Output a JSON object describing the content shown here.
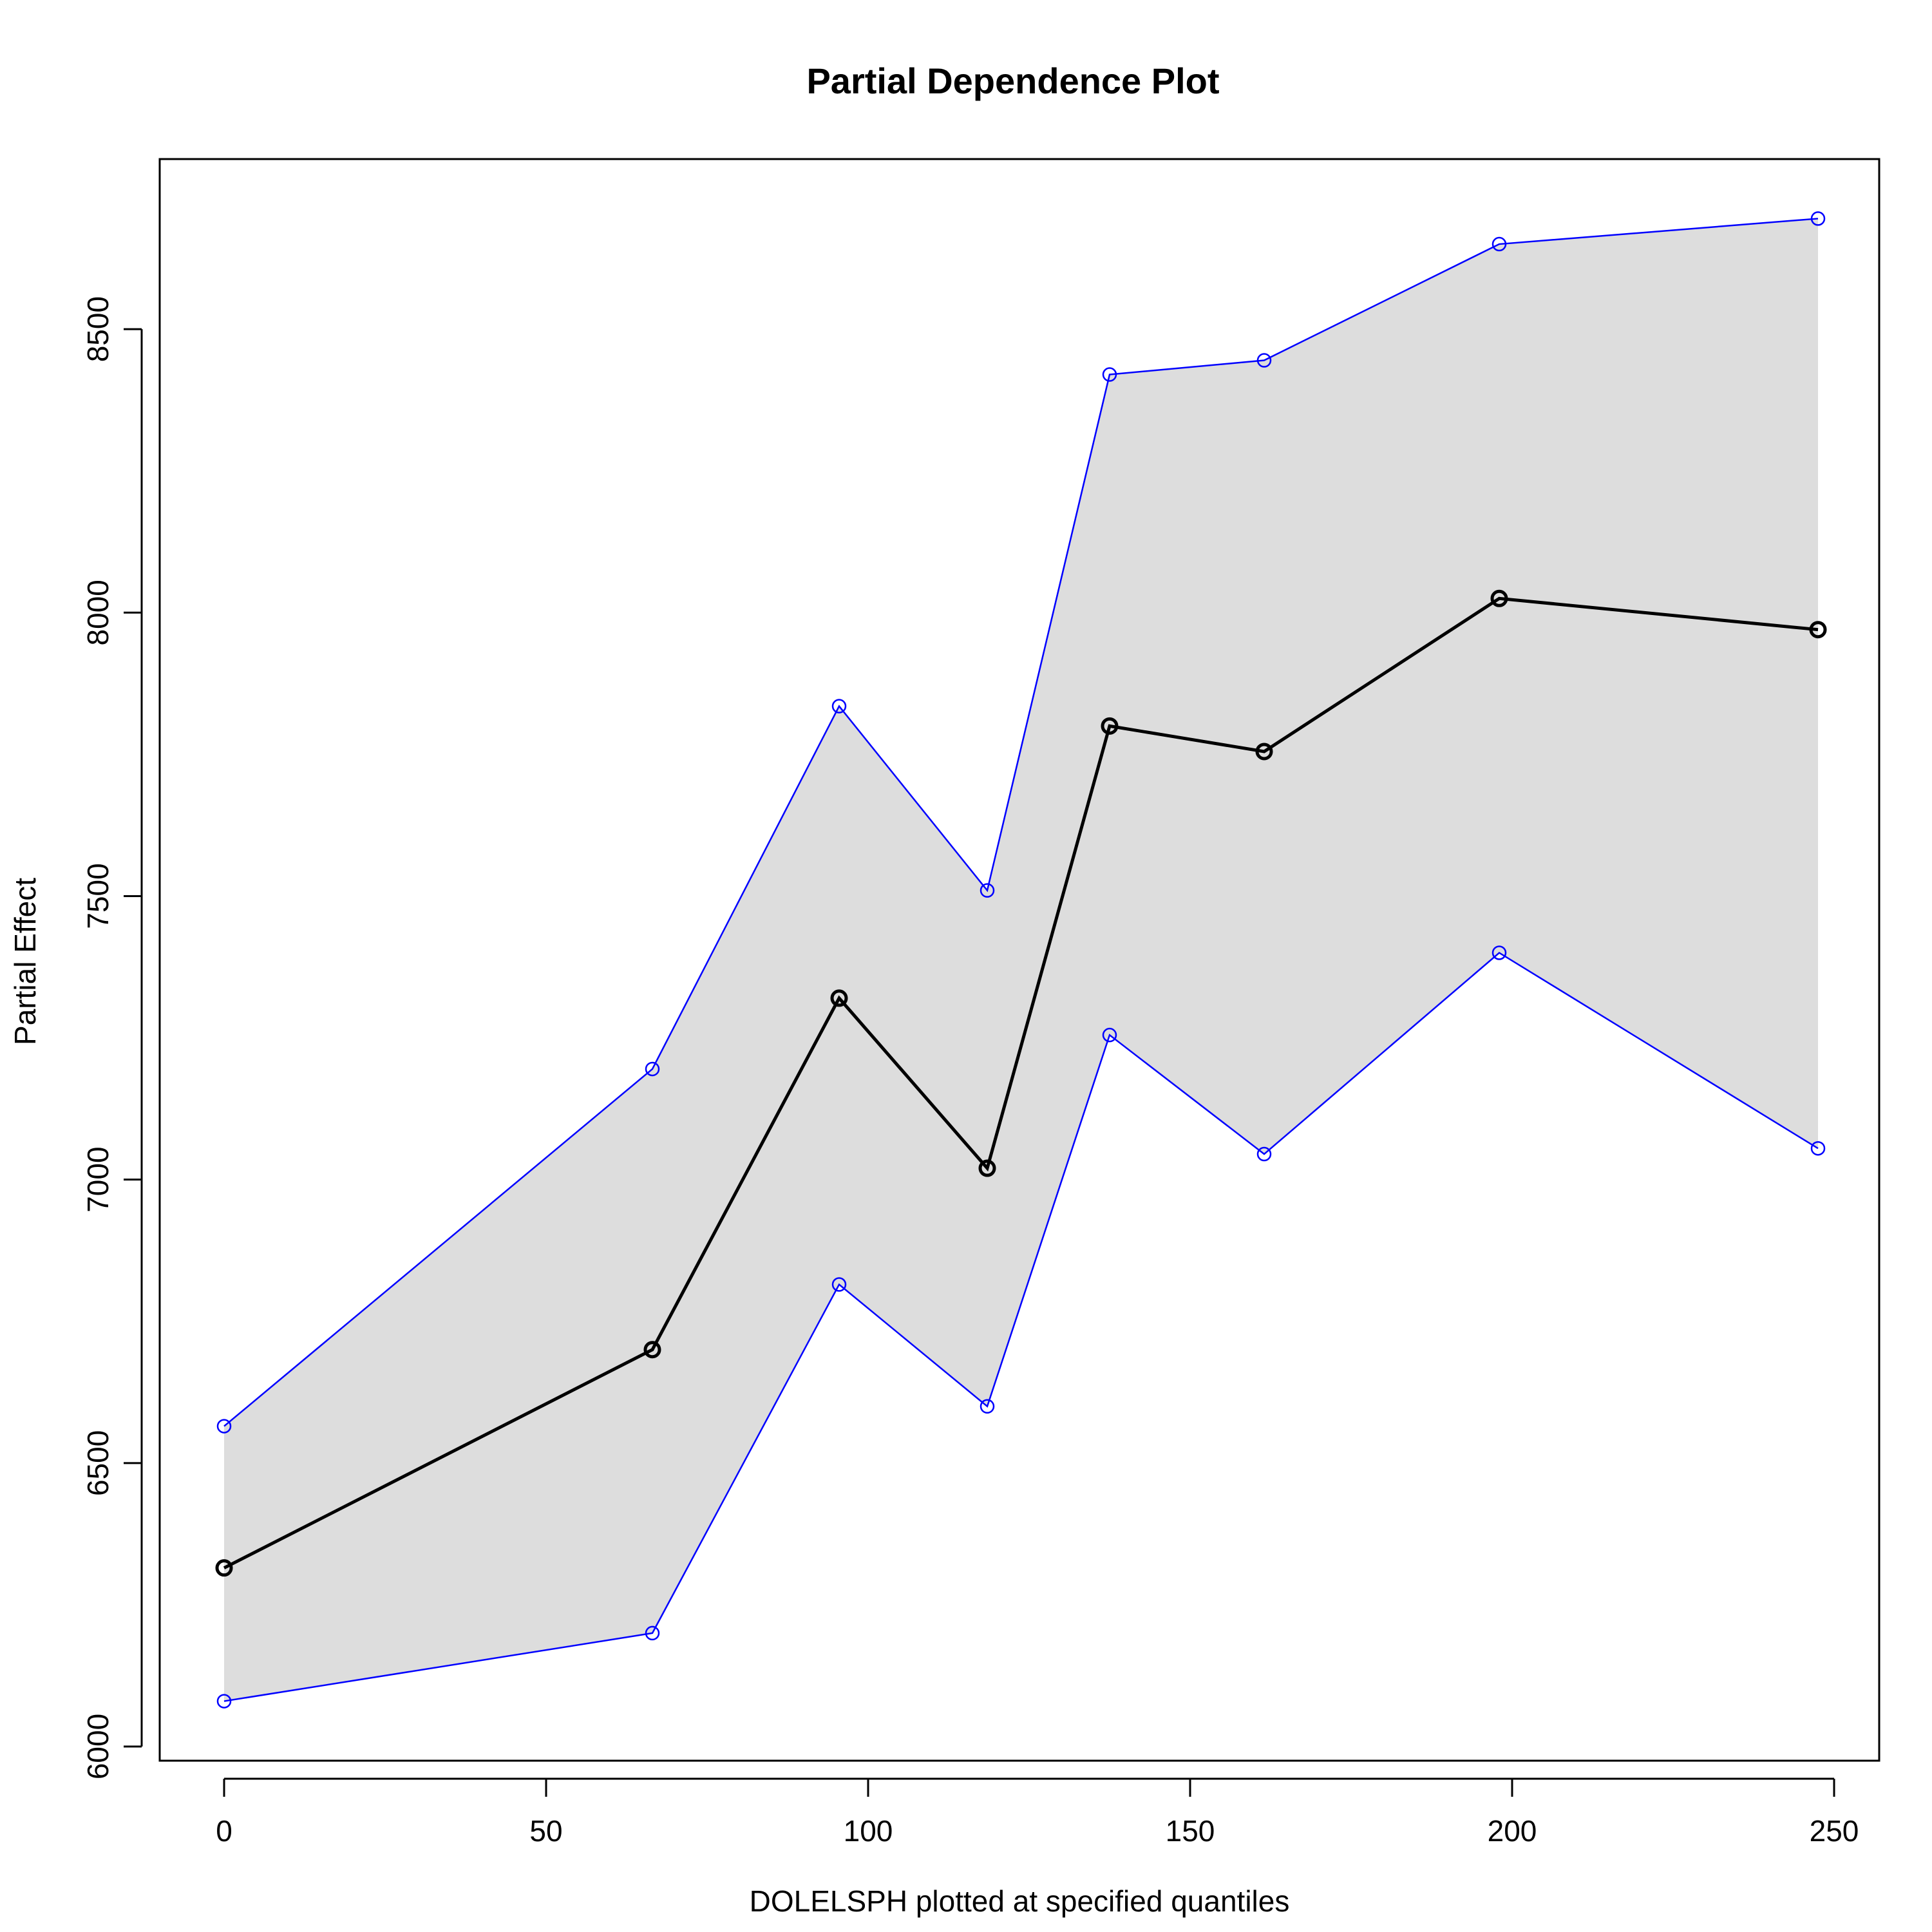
{
  "chart_data": {
    "type": "line",
    "title": "Partial Dependence Plot",
    "xlabel": "DOLELSPH plotted at specified quantiles",
    "ylabel": "Partial Effect",
    "xlim": [
      -10,
      257
    ],
    "ylim": [
      5975,
      8800
    ],
    "x_ticks": [
      0,
      50,
      100,
      150,
      200,
      250
    ],
    "y_ticks": [
      6000,
      6500,
      7000,
      7500,
      8000,
      8500
    ],
    "grid": false,
    "legend": "none",
    "band_color": "#dddddd",
    "x": [
      0,
      66.5,
      95.5,
      118.5,
      137.5,
      161.5,
      198,
      247.5
    ],
    "series": [
      {
        "role": "estimate",
        "color": "#000000",
        "values": [
          6315,
          6700,
          7320,
          7020,
          7800,
          7755,
          8025,
          7970
        ]
      },
      {
        "role": "upper",
        "color": "#0000ff",
        "values": [
          6565,
          7195,
          7835,
          7510,
          8420,
          8445,
          8650,
          8695
        ]
      },
      {
        "role": "lower",
        "color": "#0000ff",
        "values": [
          6080,
          6200,
          6815,
          6600,
          7255,
          7045,
          7400,
          7055
        ]
      }
    ]
  }
}
